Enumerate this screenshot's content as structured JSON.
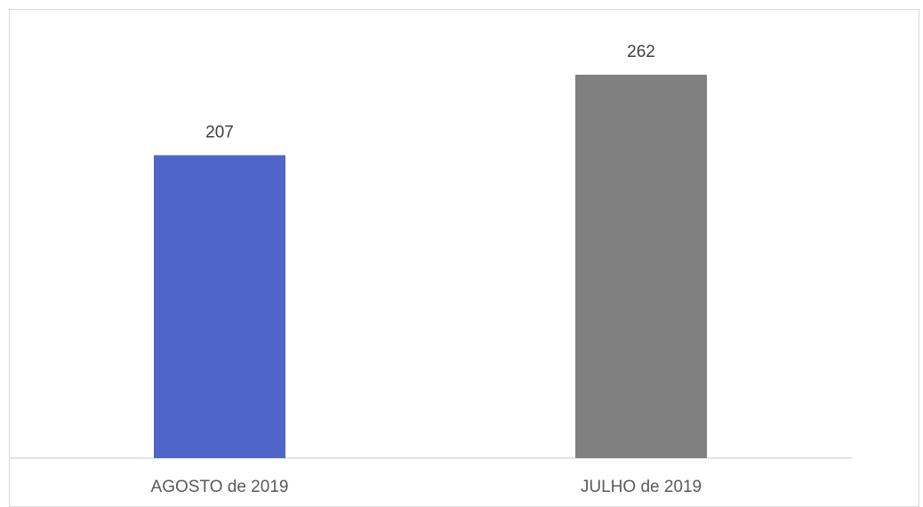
{
  "chart_data": {
    "type": "bar",
    "categories": [
      "AGOSTO de 2019",
      "JULHO de 2019"
    ],
    "values": [
      207,
      262
    ],
    "colors": [
      "#4f66c8",
      "#808080"
    ],
    "title": "",
    "xlabel": "",
    "ylabel": "",
    "ylim": [
      0,
      300
    ],
    "grid": false,
    "legend": "none",
    "data_labels": true
  }
}
